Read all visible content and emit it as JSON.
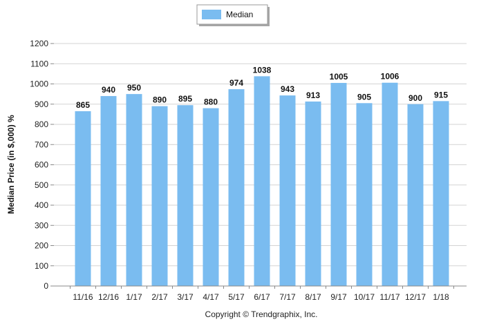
{
  "chart_data": {
    "type": "bar",
    "categories": [
      "11/16",
      "12/16",
      "1/17",
      "2/17",
      "3/17",
      "4/17",
      "5/17",
      "6/17",
      "7/17",
      "8/17",
      "9/17",
      "10/17",
      "11/17",
      "12/17",
      "1/18"
    ],
    "series": [
      {
        "name": "Median",
        "values": [
          865,
          940,
          950,
          890,
          895,
          880,
          974,
          1038,
          943,
          913,
          1005,
          905,
          1006,
          900,
          915
        ]
      }
    ],
    "ylabel": "Median Price (in $,000) %",
    "ylim": [
      0,
      1200
    ],
    "yticks": [
      0,
      100,
      200,
      300,
      400,
      500,
      600,
      700,
      800,
      900,
      1000,
      1100,
      1200
    ],
    "grid": true,
    "legend_position": "top-center",
    "bar_color": "#7ABCF0",
    "data_labels": true
  },
  "footer": {
    "copyright": "Copyright © Trendgraphix, Inc."
  }
}
